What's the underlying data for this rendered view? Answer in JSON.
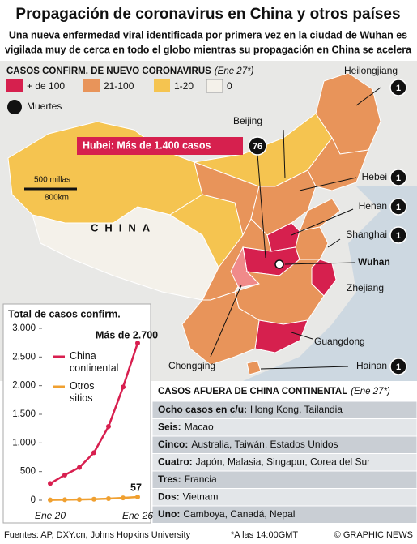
{
  "header": {
    "title": "Propagación de coronavirus en China y otros países",
    "subtitle": [
      "Una nueva enfermedad viral identificada por primera vez en la ciudad de Wuhan es",
      "vigilada muy de cerca en todo el globo mientras su propagación en China se acelera"
    ]
  },
  "map": {
    "legend": {
      "title": "CASOS CONFIRM. DE NUEVO CORONAVIRUS",
      "date": "(Ene 27*)",
      "items": [
        "+ de 100",
        "21-100",
        "1-20",
        "0"
      ],
      "deaths": "Muertes"
    },
    "country": "CHINA",
    "scale": [
      "500 millas",
      "800km"
    ],
    "hubei": {
      "label": "Hubei: Más de 1.400 casos",
      "deaths": 76
    },
    "provinces": [
      {
        "name": "Heilongjiang",
        "deaths": 1
      },
      {
        "name": "Hebei",
        "deaths": 1
      },
      {
        "name": "Henan",
        "deaths": 1
      },
      {
        "name": "Shanghai",
        "deaths": 1
      },
      {
        "name": "Hainan",
        "deaths": 1
      }
    ],
    "places": [
      "Beijing",
      "Wuhan",
      "Zhejiang",
      "Guangdong",
      "Chongqing"
    ]
  },
  "chart_data": {
    "type": "line",
    "title": "Total de casos confirm.",
    "categories": [
      "Ene 20",
      null,
      null,
      null,
      null,
      null,
      "Ene 26"
    ],
    "series": [
      {
        "name": "China continental",
        "color": "#d81f4f",
        "values": [
          291,
          440,
          571,
          830,
          1287,
          1975,
          2744
        ]
      },
      {
        "name": "Otros sitios",
        "color": "#f0a030",
        "values": [
          5,
          8,
          12,
          17,
          28,
          40,
          57
        ]
      }
    ],
    "ylim": [
      0,
      3000
    ],
    "yticks": [
      0,
      500,
      {
        "value": 1000,
        "label": "1.000"
      },
      {
        "value": 1500,
        "label": "1.500"
      },
      {
        "value": 2000,
        "label": "2.000"
      },
      {
        "value": 2500,
        "label": "2.500"
      },
      {
        "value": 3000,
        "label": "3.000"
      }
    ],
    "grid": false,
    "annotations": [
      "Más de 2.700",
      "57"
    ]
  },
  "table": {
    "title": "CASOS AFUERA DE CHINA CONTINENTAL",
    "date": "(Ene 27*)",
    "rows": [
      [
        "Ocho casos en c/u:",
        "Hong Kong, Tailandia"
      ],
      [
        "Seis:",
        "Macao"
      ],
      [
        "Cinco:",
        "Australia, Taiwán, Estados Unidos"
      ],
      [
        "Cuatro:",
        "Japón, Malasia, Singapur, Corea del Sur"
      ],
      [
        "Tres:",
        "Francia"
      ],
      [
        "Dos:",
        "Vietnam"
      ],
      [
        "Uno:",
        "Camboya, Canadá, Nepal"
      ]
    ]
  },
  "footer": {
    "source": "Fuentes: AP, DXY.cn, Johns Hopkins University",
    "note": "*A las 14:00GMT",
    "credit": "© GRAPHIC NEWS"
  }
}
